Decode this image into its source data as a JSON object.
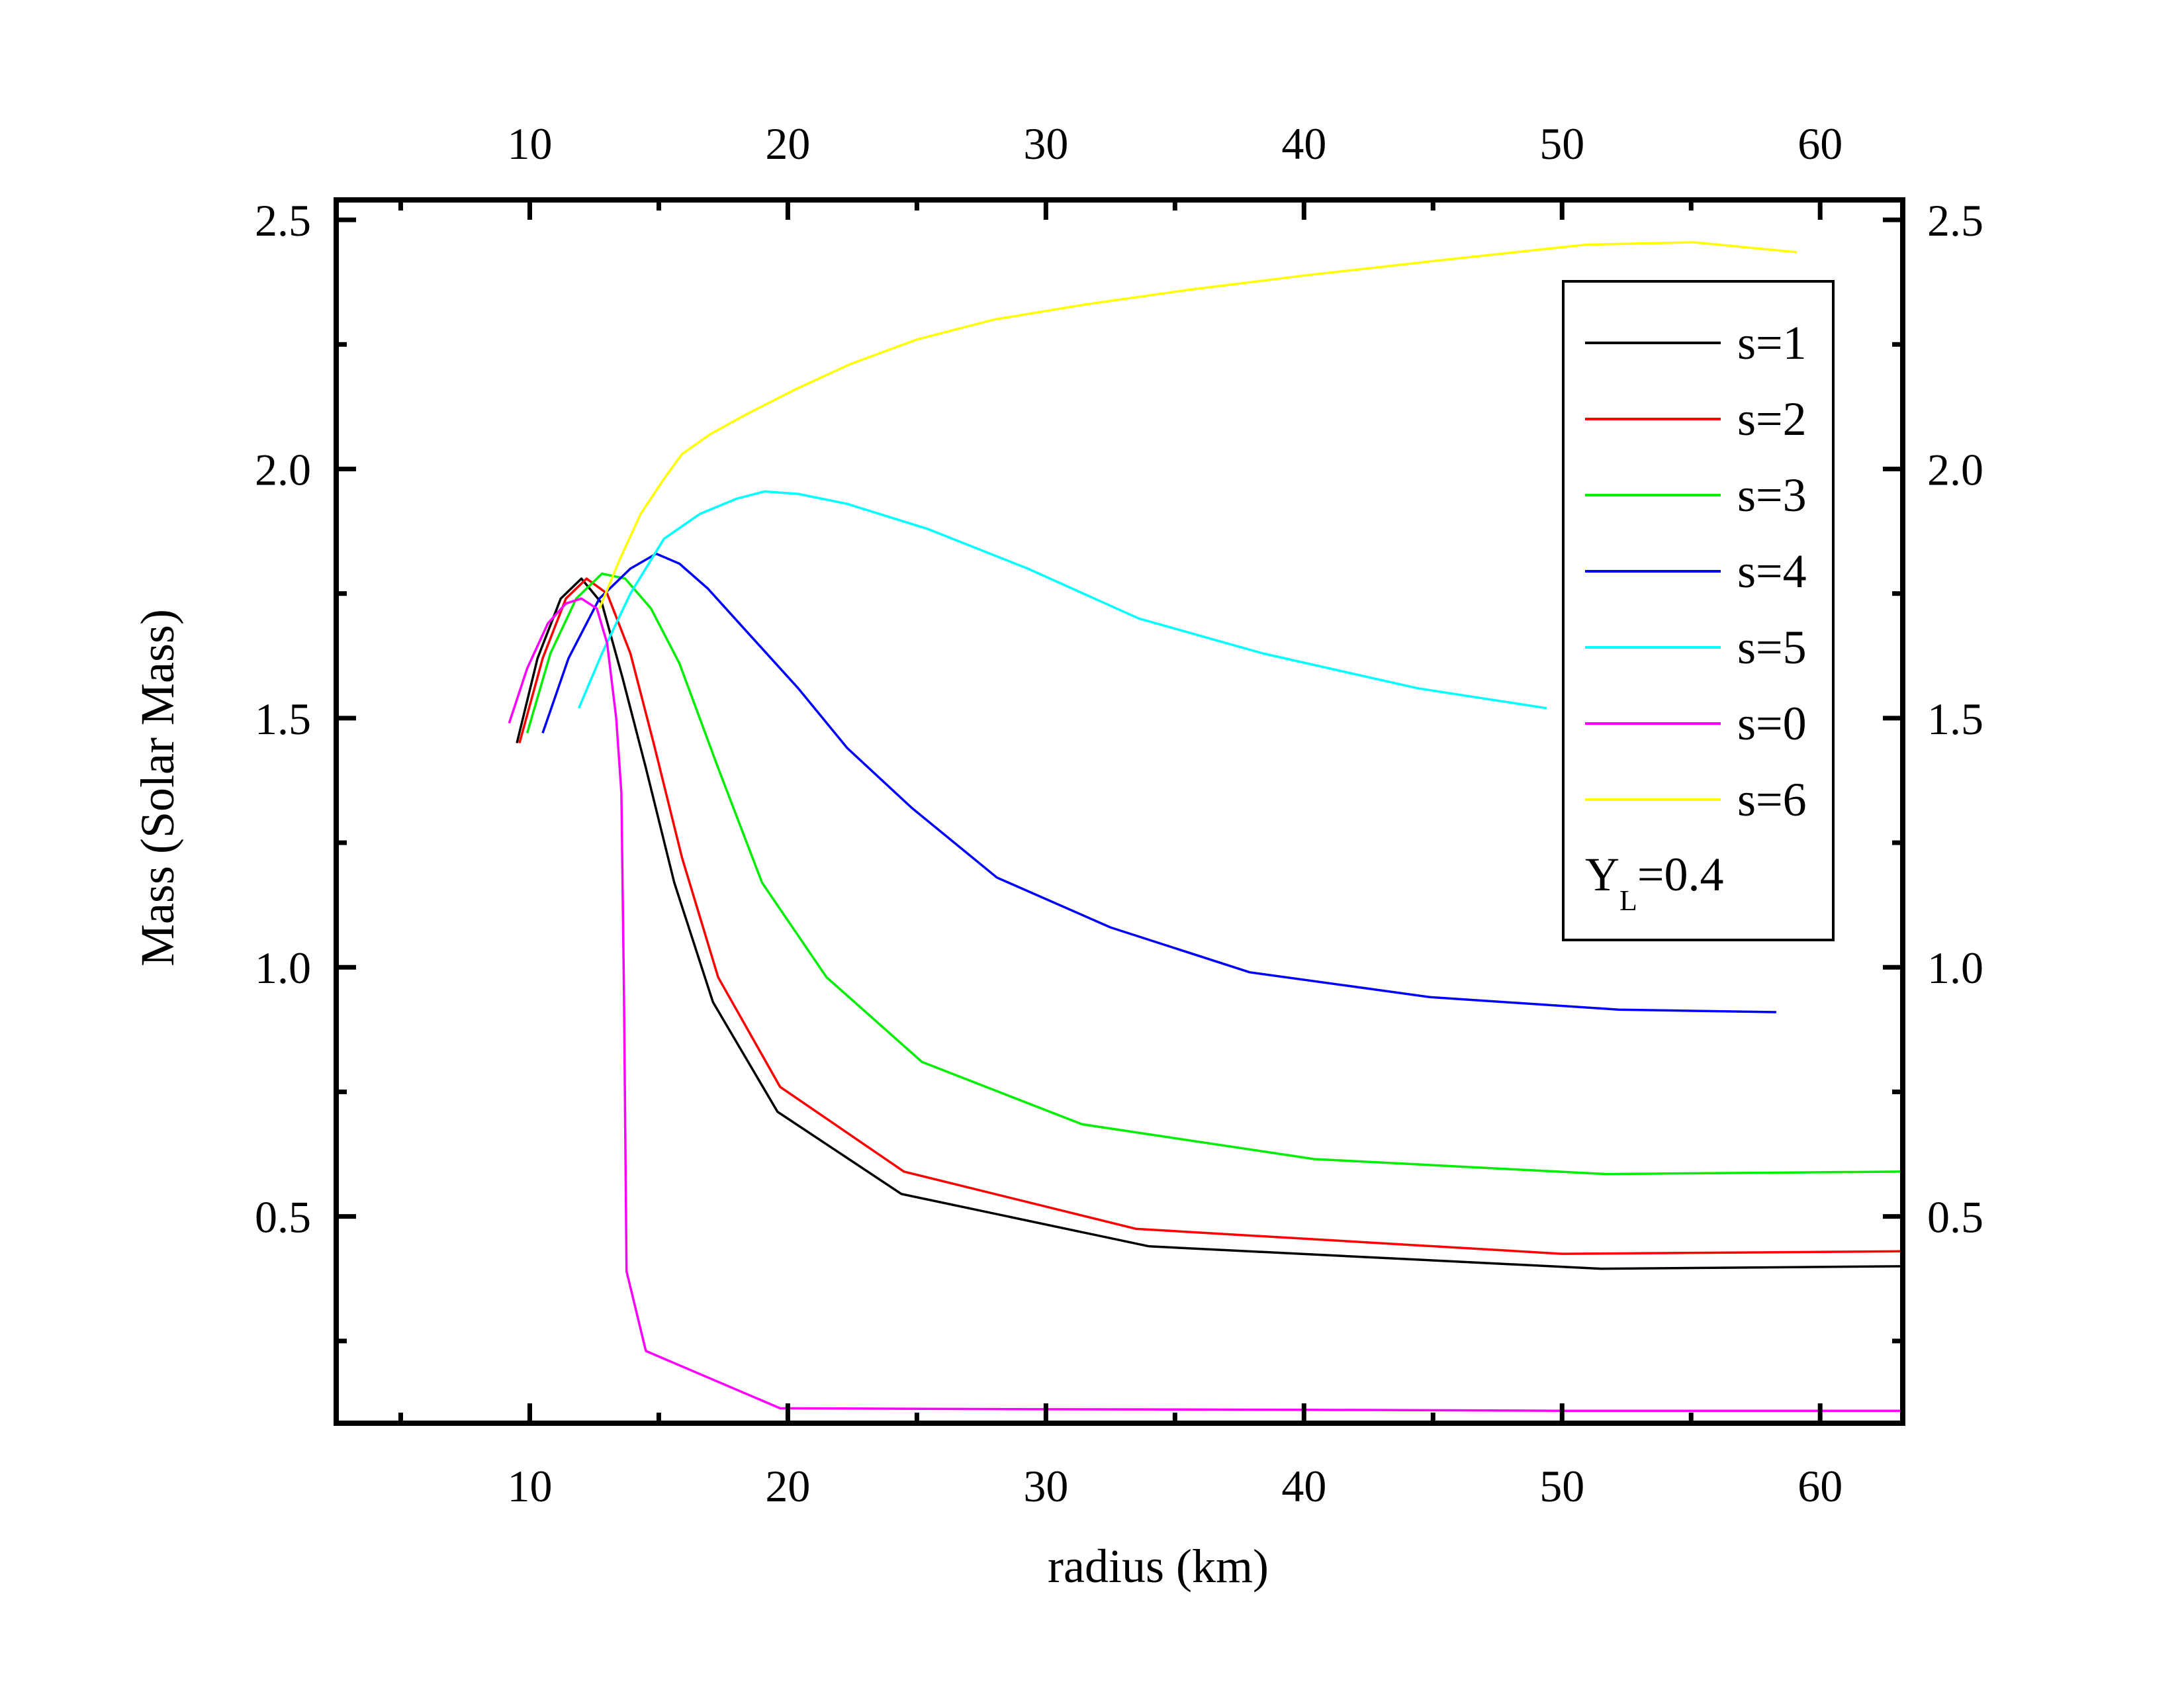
{
  "chart_data": {
    "type": "line",
    "xlabel": "radius (km)",
    "ylabel": "Mass (Solar Mass)",
    "xlim": [
      2.5,
      63.2
    ],
    "ylim": [
      0.085,
      2.54
    ],
    "x_ticks": [
      10,
      20,
      30,
      40,
      50,
      60
    ],
    "y_ticks": [
      0.5,
      1.0,
      1.5,
      2.0,
      2.5
    ],
    "x_tick_labels": [
      "10",
      "20",
      "30",
      "40",
      "50",
      "60"
    ],
    "y_tick_labels": [
      "0.5",
      "1.0",
      "1.5",
      "2.0",
      "2.5"
    ],
    "legend_position": "top-right",
    "annotation": {
      "main": "Y",
      "sub": "L",
      "rest": "=0.4"
    },
    "grid": false,
    "series": [
      {
        "name": "s=1",
        "color": "#000000",
        "x": [
          9.5,
          10.3,
          11.2,
          12.0,
          12.8,
          13.6,
          14.5,
          15.6,
          17.1,
          19.6,
          24.4,
          34.0,
          51.5,
          63.2
        ],
        "y": [
          1.45,
          1.62,
          1.74,
          1.78,
          1.73,
          1.58,
          1.4,
          1.17,
          0.93,
          0.71,
          0.545,
          0.44,
          0.395,
          0.4
        ]
      },
      {
        "name": "s=2",
        "color": "#ff0000",
        "x": [
          9.6,
          10.5,
          11.4,
          12.2,
          13.0,
          13.9,
          14.8,
          15.9,
          17.3,
          19.7,
          24.5,
          33.5,
          50.0,
          63.2
        ],
        "y": [
          1.45,
          1.62,
          1.74,
          1.78,
          1.75,
          1.63,
          1.45,
          1.22,
          0.98,
          0.76,
          0.59,
          0.475,
          0.425,
          0.43
        ]
      },
      {
        "name": "s=3",
        "color": "#00ee00",
        "x": [
          9.9,
          10.8,
          11.8,
          12.8,
          13.7,
          14.7,
          15.8,
          17.3,
          19.0,
          21.5,
          25.2,
          31.4,
          40.4,
          51.7,
          63.2
        ],
        "y": [
          1.47,
          1.63,
          1.74,
          1.79,
          1.78,
          1.72,
          1.61,
          1.4,
          1.17,
          0.98,
          0.81,
          0.685,
          0.615,
          0.585,
          0.59
        ]
      },
      {
        "name": "s=4",
        "color": "#0000ff",
        "x": [
          10.5,
          11.5,
          12.7,
          13.9,
          14.9,
          15.8,
          16.9,
          18.3,
          20.4,
          22.3,
          24.8,
          28.1,
          32.5,
          37.9,
          44.9,
          52.2,
          58.3
        ],
        "y": [
          1.47,
          1.62,
          1.74,
          1.8,
          1.83,
          1.81,
          1.76,
          1.68,
          1.56,
          1.44,
          1.32,
          1.18,
          1.08,
          0.99,
          0.94,
          0.915,
          0.91
        ]
      },
      {
        "name": "s=5",
        "color": "#00ffff",
        "x": [
          11.9,
          12.8,
          13.9,
          15.2,
          16.6,
          18.0,
          19.1,
          20.4,
          22.3,
          25.4,
          29.3,
          33.6,
          38.4,
          44.4,
          49.4
        ],
        "y": [
          1.52,
          1.63,
          1.75,
          1.86,
          1.91,
          1.94,
          1.955,
          1.95,
          1.93,
          1.88,
          1.8,
          1.7,
          1.63,
          1.56,
          1.52
        ]
      },
      {
        "name": "s=0",
        "color": "#ff00ff",
        "x": [
          9.2,
          9.9,
          10.7,
          11.4,
          12.0,
          12.6,
          13.0,
          13.35,
          13.55,
          13.65,
          13.75,
          14.5,
          19.7,
          30.0,
          40.0,
          50.0,
          63.2
        ],
        "y": [
          1.49,
          1.6,
          1.69,
          1.73,
          1.74,
          1.72,
          1.65,
          1.5,
          1.35,
          0.95,
          0.39,
          0.23,
          0.115,
          0.113,
          0.112,
          0.11,
          0.11
        ]
      },
      {
        "name": "s=6",
        "color": "#ffff00",
        "x": [
          12.7,
          13.5,
          14.3,
          15.2,
          15.9,
          17.0,
          18.4,
          20.3,
          22.4,
          25.0,
          28.0,
          31.5,
          35.6,
          40.3,
          45.5,
          50.9,
          55.1,
          59.1
        ],
        "y": [
          1.72,
          1.82,
          1.91,
          1.98,
          2.03,
          2.07,
          2.11,
          2.16,
          2.21,
          2.26,
          2.3,
          2.33,
          2.36,
          2.39,
          2.42,
          2.45,
          2.455,
          2.435
        ]
      }
    ]
  }
}
